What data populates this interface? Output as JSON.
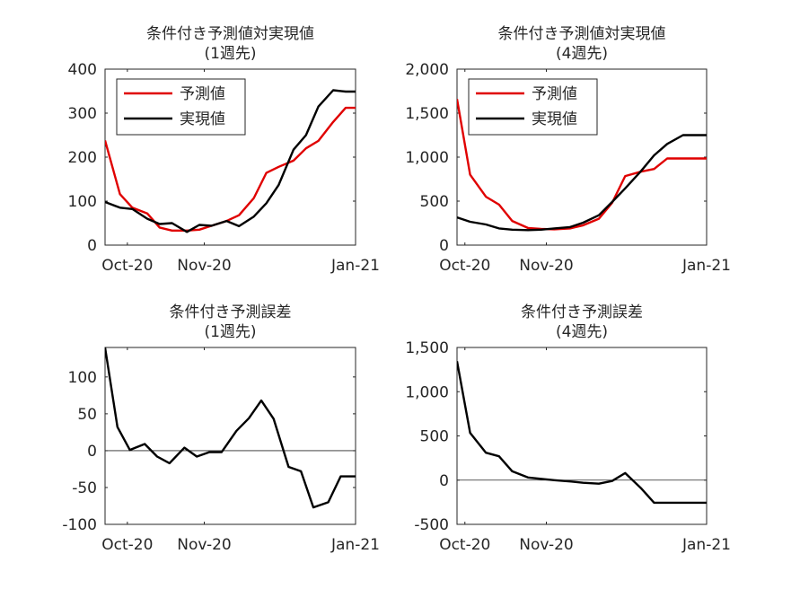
{
  "chart_data": [
    {
      "type": "line",
      "title": "条件付き予測値対実現値",
      "subtitle": "(1週先)",
      "xlabel": "",
      "ylabel": "",
      "xlim": [
        "2020-09-22",
        "2021-01-01"
      ],
      "ylim": [
        0,
        400
      ],
      "grid": false,
      "legend": "top-left",
      "x_ticks": [
        {
          "x": "2020-10-01",
          "label": "Oct-20"
        },
        {
          "x": "2020-11-01",
          "label": "Nov-20"
        },
        {
          "x": "2021-01-01",
          "label": "Jan-21"
        }
      ],
      "y_ticks": [
        {
          "value": 0,
          "label": "0"
        },
        {
          "value": 100,
          "label": "100"
        },
        {
          "value": 200,
          "label": "200"
        },
        {
          "value": 300,
          "label": "300"
        },
        {
          "value": 400,
          "label": "400"
        }
      ],
      "x": [
        "2020-09-22",
        "2020-09-28",
        "2020-10-03",
        "2020-10-09",
        "2020-10-14",
        "2020-10-19",
        "2020-10-25",
        "2020-10-30",
        "2020-11-04",
        "2020-11-10",
        "2020-11-15",
        "2020-11-21",
        "2020-11-26",
        "2020-12-01",
        "2020-12-07",
        "2020-12-12",
        "2020-12-17",
        "2020-12-23",
        "2020-12-28",
        "2021-01-01"
      ],
      "series": [
        {
          "name": "予測値",
          "color": "#e00000",
          "values": [
            238,
            116,
            85,
            72,
            40,
            33,
            33,
            35,
            44,
            55,
            68,
            107,
            164,
            178,
            192,
            220,
            237,
            280,
            312,
            312
          ]
        },
        {
          "name": "実現値",
          "color": "#000000",
          "values": [
            98,
            85,
            82,
            60,
            48,
            50,
            30,
            46,
            44,
            55,
            43,
            65,
            95,
            137,
            217,
            250,
            315,
            352,
            349,
            349
          ]
        }
      ]
    },
    {
      "type": "line",
      "title": "条件付き予測値対実現値",
      "subtitle": "(4週先)",
      "xlabel": "",
      "ylabel": "",
      "xlim": [
        "2020-09-28",
        "2021-01-01"
      ],
      "ylim": [
        0,
        2000
      ],
      "grid": false,
      "legend": "top-left",
      "x_ticks": [
        {
          "x": "2020-10-01",
          "label": "Oct-20"
        },
        {
          "x": "2020-11-01",
          "label": "Nov-20"
        },
        {
          "x": "2021-01-01",
          "label": "Jan-21"
        }
      ],
      "y_ticks": [
        {
          "value": 0,
          "label": "0"
        },
        {
          "value": 500,
          "label": "500"
        },
        {
          "value": 1000,
          "label": "1,000"
        },
        {
          "value": 1500,
          "label": "1,500"
        },
        {
          "value": 2000,
          "label": "2,000"
        }
      ],
      "x": [
        "2020-09-28",
        "2020-10-03",
        "2020-10-09",
        "2020-10-14",
        "2020-10-19",
        "2020-10-25",
        "2020-10-30",
        "2020-11-04",
        "2020-11-10",
        "2020-11-15",
        "2020-11-21",
        "2020-11-26",
        "2020-12-01",
        "2020-12-07",
        "2020-12-12",
        "2020-12-17",
        "2020-12-23",
        "2020-12-28",
        "2021-01-01"
      ],
      "series": [
        {
          "name": "予測値",
          "color": "#e00000",
          "values": [
            1660,
            800,
            550,
            460,
            275,
            195,
            185,
            180,
            190,
            225,
            300,
            480,
            785,
            835,
            865,
            985,
            985,
            985,
            985
          ]
        },
        {
          "name": "実現値",
          "color": "#000000",
          "values": [
            315,
            265,
            235,
            190,
            175,
            170,
            175,
            190,
            205,
            255,
            340,
            490,
            645,
            840,
            1020,
            1150,
            1250,
            1250,
            1250
          ]
        }
      ]
    },
    {
      "type": "line",
      "title": "条件付き予測誤差",
      "subtitle": "(1週先)",
      "xlabel": "",
      "ylabel": "",
      "xlim": [
        "2020-09-22",
        "2021-01-01"
      ],
      "ylim": [
        -100,
        140
      ],
      "grid": false,
      "zero_line": true,
      "x_ticks": [
        {
          "x": "2020-10-01",
          "label": "Oct-20"
        },
        {
          "x": "2020-11-01",
          "label": "Nov-20"
        },
        {
          "x": "2021-01-01",
          "label": "Jan-21"
        }
      ],
      "y_ticks": [
        {
          "value": -100,
          "label": "-100"
        },
        {
          "value": -50,
          "label": "-50"
        },
        {
          "value": 0,
          "label": "0"
        },
        {
          "value": 50,
          "label": "50"
        },
        {
          "value": 100,
          "label": "100"
        }
      ],
      "x": [
        "2020-09-22",
        "2020-09-27",
        "2020-10-02",
        "2020-10-08",
        "2020-10-13",
        "2020-10-18",
        "2020-10-24",
        "2020-10-29",
        "2020-11-03",
        "2020-11-08",
        "2020-11-14",
        "2020-11-19",
        "2020-11-24",
        "2020-11-29",
        "2020-12-05",
        "2020-12-10",
        "2020-12-15",
        "2020-12-21",
        "2020-12-26",
        "2021-01-01"
      ],
      "series": [
        {
          "name": "",
          "color": "#000000",
          "values": [
            140,
            32,
            1,
            9,
            -8,
            -17,
            4,
            -8,
            -2,
            -2,
            27,
            44,
            68,
            43,
            -22,
            -28,
            -77,
            -70,
            -35,
            -35
          ]
        }
      ]
    },
    {
      "type": "line",
      "title": "条件付き予測誤差",
      "subtitle": "(4週先)",
      "xlabel": "",
      "ylabel": "",
      "xlim": [
        "2020-09-28",
        "2021-01-01"
      ],
      "ylim": [
        -500,
        1500
      ],
      "grid": false,
      "zero_line": true,
      "x_ticks": [
        {
          "x": "2020-10-01",
          "label": "Oct-20"
        },
        {
          "x": "2020-11-01",
          "label": "Nov-20"
        },
        {
          "x": "2021-01-01",
          "label": "Jan-21"
        }
      ],
      "y_ticks": [
        {
          "value": -500,
          "label": "-500"
        },
        {
          "value": 0,
          "label": "0"
        },
        {
          "value": 500,
          "label": "500"
        },
        {
          "value": 1000,
          "label": "1,000"
        },
        {
          "value": 1500,
          "label": "1,500"
        }
      ],
      "x": [
        "2020-09-28",
        "2020-10-03",
        "2020-10-09",
        "2020-10-14",
        "2020-10-19",
        "2020-10-25",
        "2020-10-30",
        "2020-11-04",
        "2020-11-10",
        "2020-11-15",
        "2020-11-21",
        "2020-11-26",
        "2020-12-01",
        "2020-12-07",
        "2020-12-12",
        "2020-12-17",
        "2020-12-23",
        "2020-12-28",
        "2021-01-01"
      ],
      "series": [
        {
          "name": "",
          "color": "#000000",
          "values": [
            1345,
            535,
            310,
            270,
            100,
            30,
            15,
            0,
            -15,
            -30,
            -40,
            -10,
            80,
            -90,
            -255,
            -255,
            -255,
            -255,
            -255
          ]
        }
      ]
    }
  ]
}
